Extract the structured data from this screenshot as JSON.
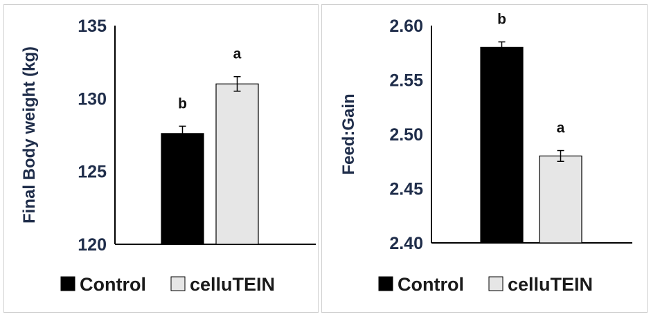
{
  "chart_data": [
    {
      "type": "bar",
      "categories": [
        "Control",
        "celluTEIN"
      ],
      "values": [
        127.6,
        131.0
      ],
      "errors": [
        0.5,
        0.5
      ],
      "significance": [
        "b",
        "a"
      ],
      "ylabel": "Final Body weight (kg)",
      "ylim": [
        120,
        135
      ],
      "yticks": [
        "120",
        "125",
        "130",
        "135"
      ],
      "tick_values": [
        120,
        125,
        130,
        135
      ],
      "colors": [
        "#000000",
        "#e6e6e6"
      ],
      "legend": [
        "Control",
        "celluTEIN"
      ],
      "legend_position": "bottom"
    },
    {
      "type": "bar",
      "categories": [
        "Control",
        "celluTEIN"
      ],
      "values": [
        2.58,
        2.48
      ],
      "errors": [
        0.005,
        0.005
      ],
      "significance": [
        "b",
        "a"
      ],
      "ylabel": "Feed:Gain",
      "ylim": [
        2.4,
        2.6
      ],
      "yticks": [
        "2.40",
        "2.45",
        "2.50",
        "2.55",
        "2.60"
      ],
      "tick_values": [
        2.4,
        2.45,
        2.5,
        2.55,
        2.6
      ],
      "colors": [
        "#000000",
        "#e6e6e6"
      ],
      "legend": [
        "Control",
        "celluTEIN"
      ],
      "legend_position": "bottom"
    }
  ]
}
